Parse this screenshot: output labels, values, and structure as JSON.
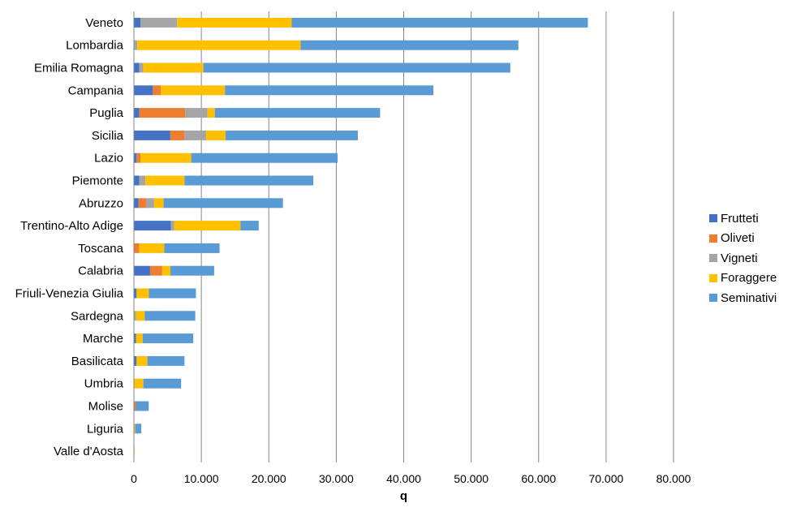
{
  "chart_data": {
    "type": "bar",
    "orientation": "horizontal",
    "stacked": true,
    "categories": [
      "Veneto",
      "Lombardia",
      "Emilia Romagna",
      "Campania",
      "Puglia",
      "Sicilia",
      "Lazio",
      "Piemonte",
      "Abruzzo",
      "Trentino-Alto Adige",
      "Toscana",
      "Calabria",
      "Friuli-Venezia Giulia",
      "Sardegna",
      "Marche",
      "Basilicata",
      "Umbria",
      "Molise",
      "Liguria",
      "Valle d'Aosta"
    ],
    "series": [
      {
        "name": "Frutteti",
        "color": "#4472c4",
        "values": [
          1000,
          0,
          800,
          2800,
          800,
          5400,
          400,
          800,
          700,
          5500,
          0,
          2400,
          400,
          0,
          300,
          400,
          0,
          0,
          0,
          0
        ]
      },
      {
        "name": "Oliveti",
        "color": "#ed7d31",
        "values": [
          0,
          0,
          0,
          1200,
          6800,
          2100,
          600,
          0,
          1100,
          0,
          800,
          1800,
          0,
          0,
          0,
          0,
          0,
          300,
          0,
          0
        ]
      },
      {
        "name": "Vigneti",
        "color": "#a5a5a5",
        "values": [
          5400,
          500,
          600,
          0,
          3300,
          3200,
          0,
          900,
          1200,
          500,
          0,
          0,
          0,
          300,
          0,
          0,
          0,
          0,
          0,
          0
        ]
      },
      {
        "name": "Foraggere",
        "color": "#ffc000",
        "values": [
          17000,
          24200,
          8900,
          9500,
          1100,
          2900,
          7500,
          5800,
          1400,
          9800,
          3700,
          1200,
          1800,
          1300,
          1000,
          1600,
          1400,
          0,
          200,
          100
        ]
      },
      {
        "name": "Seminativi",
        "color": "#5b9bd5",
        "values": [
          43900,
          32300,
          45500,
          30900,
          24500,
          19600,
          21700,
          19100,
          17700,
          2700,
          8200,
          6500,
          7000,
          7500,
          7500,
          5500,
          5600,
          1900,
          900,
          0
        ]
      }
    ],
    "xlabel": "q",
    "xlim": [
      0,
      80000
    ],
    "xticks": [
      "0",
      "10.000",
      "20.000",
      "30.000",
      "40.000",
      "50.000",
      "60.000",
      "70.000",
      "80.000"
    ],
    "xtick_values": [
      0,
      10000,
      20000,
      30000,
      40000,
      50000,
      60000,
      70000,
      80000
    ],
    "grid": "vertical major",
    "legend_position": "right"
  }
}
